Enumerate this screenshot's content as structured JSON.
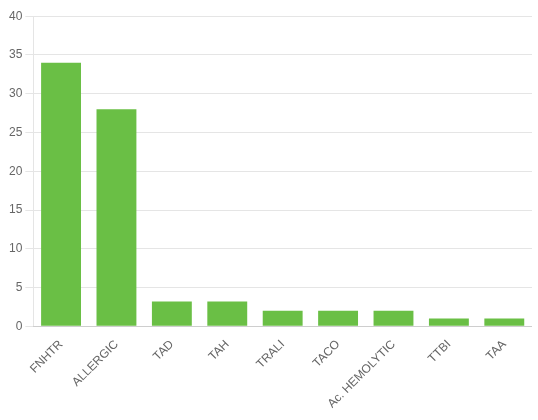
{
  "chart_data": {
    "type": "bar",
    "categories": [
      "FNHTR",
      "ALLERGIC",
      "TAD",
      "TAH",
      "TRALI",
      "TACO",
      "Ac. HEMOLYTIC",
      "TTBI",
      "TAA"
    ],
    "values": [
      34,
      28,
      3.2,
      3.2,
      2.0,
      2.0,
      2.0,
      1.0,
      1.0
    ],
    "color": "#6abf45",
    "ylim": [
      0,
      40
    ],
    "yticks": [
      0,
      5,
      10,
      15,
      20,
      25,
      30,
      35,
      40
    ],
    "grid": true
  }
}
